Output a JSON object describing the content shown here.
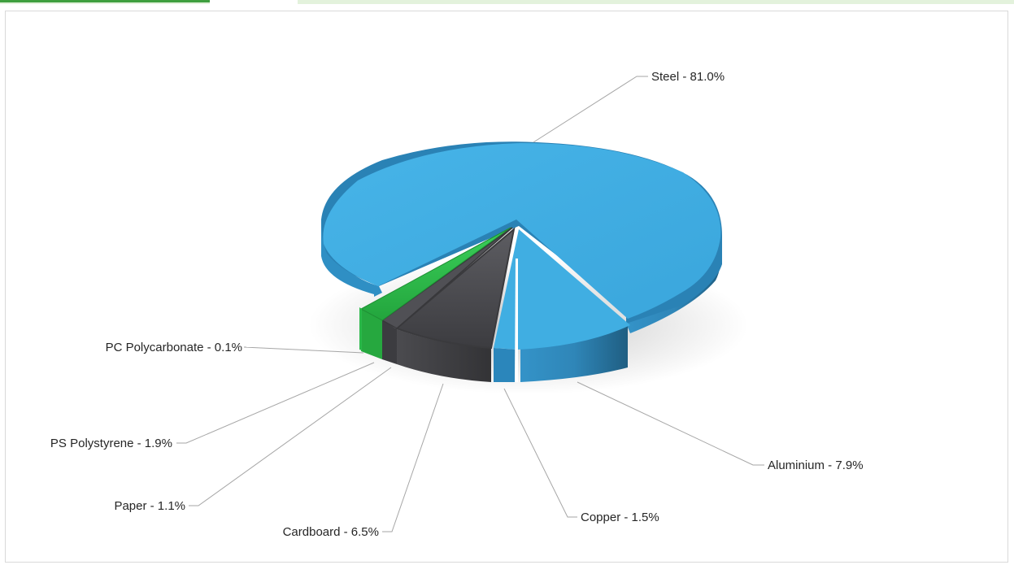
{
  "chart_data": {
    "type": "pie",
    "title": "",
    "slices": [
      {
        "label": "Steel - 81.0%",
        "name": "Steel",
        "value": 81.0,
        "color": "#41aee3"
      },
      {
        "label": "Aluminium - 7.9%",
        "name": "Aluminium",
        "value": 7.9,
        "color": "#41aee3"
      },
      {
        "label": "Copper - 1.5%",
        "name": "Copper",
        "value": 1.5,
        "color": "#41aee3"
      },
      {
        "label": "Cardboard - 6.5%",
        "name": "Cardboard",
        "value": 6.5,
        "color": "#5a5a5e"
      },
      {
        "label": "Paper - 1.1%",
        "name": "Paper",
        "value": 1.1,
        "color": "#5a5a5e"
      },
      {
        "label": "PS Polystyrene - 1.9%",
        "name": "PS Polystyrene",
        "value": 1.9,
        "color": "#33c24f"
      },
      {
        "label": "PC Polycarbonate - 0.1%",
        "name": "PC Polycarbonate",
        "value": 0.1,
        "color": "#33c24f"
      }
    ],
    "legend": "none",
    "style": "3d-exploded"
  }
}
